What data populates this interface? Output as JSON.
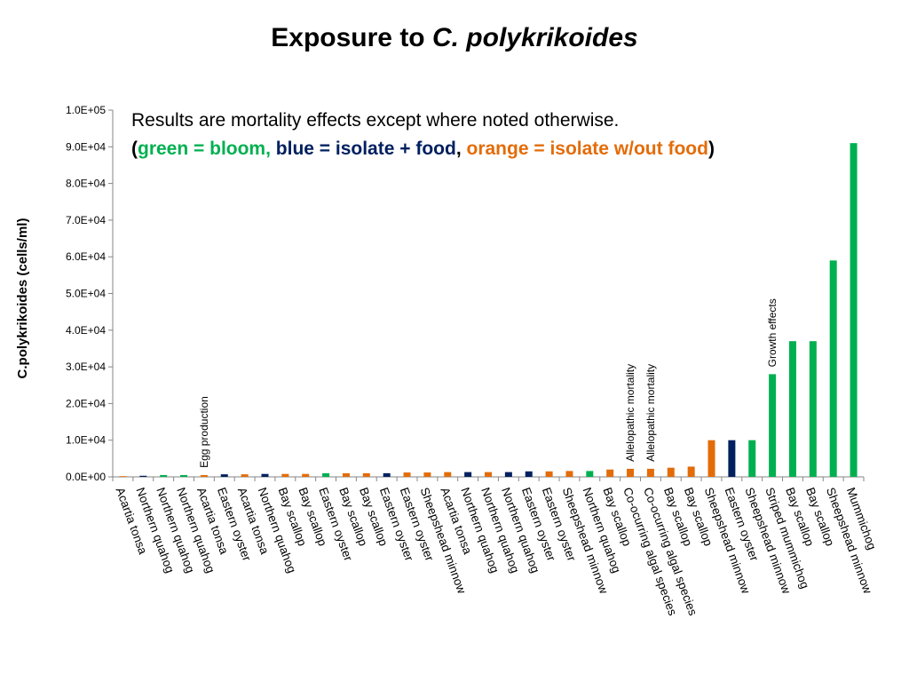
{
  "slide": {
    "title_plain": "Exposure to ",
    "title_italic": "C. polykrikoides"
  },
  "note": {
    "line1": "Results are mortality effects except where noted otherwise.",
    "open_paren": "(",
    "green_text": "green = bloom",
    "sep1": ", ",
    "blue_text": "blue = isolate + food",
    "sep2": ", ",
    "orange_text": "orange = isolate w/out food",
    "close_paren": ")"
  },
  "colors": {
    "bloom": "#00b050",
    "isolate_food": "#002060",
    "isolate_no_food": "#e36c09"
  },
  "chart_data": {
    "type": "bar",
    "ylabel": "C.polykrikoides (cells/ml)",
    "ylim": [
      0,
      100000
    ],
    "yticks": [
      "0.0E+00",
      "1.0E+04",
      "2.0E+04",
      "3.0E+04",
      "4.0E+04",
      "5.0E+04",
      "6.0E+04",
      "7.0E+04",
      "8.0E+04",
      "9.0E+04",
      "1.0E+05"
    ],
    "grid": false,
    "categories": [
      "Acartia tonsa",
      "Northern quahog",
      "Northern quahog",
      "Northern quahog",
      "Acartia tonsa",
      "Eastern oyster",
      "Acartia tonsa",
      "Northern quahog",
      "Bay scallop",
      "Bay scallop",
      "Eastern oyster",
      "Bay scallop",
      "Bay scallop",
      "Eastern oyster",
      "Eastern oyster",
      "Sheepshead minnow",
      "Acartia tonsa",
      "Northern quahog",
      "Northern quahog",
      "Northern quahog",
      "Eastern oyster",
      "Eastern oyster",
      "Sheepshead minnow",
      "Northern quahog",
      "Bay scallop",
      "Co-ocurring algal species",
      "Co-ocurring algal species",
      "Bay scallop",
      "Bay scallop",
      "Sheepshead minnow",
      "Eastern oyster",
      "Sheepshead minnow",
      "Striped mummichog",
      "Bay scallop",
      "Bay scallop",
      "Sheepshead minnow",
      "Mummichog"
    ],
    "values": [
      200,
      300,
      500,
      500,
      500,
      700,
      700,
      800,
      800,
      800,
      1000,
      1000,
      1000,
      1000,
      1200,
      1200,
      1300,
      1300,
      1300,
      1300,
      1500,
      1500,
      1600,
      1600,
      2000,
      2200,
      2200,
      2500,
      2800,
      10000,
      10000,
      10000,
      28000,
      37000,
      37000,
      59000,
      91000
    ],
    "groups": [
      "isolate_no_food",
      "isolate_food",
      "bloom",
      "bloom",
      "isolate_no_food",
      "isolate_food",
      "isolate_no_food",
      "isolate_food",
      "isolate_no_food",
      "isolate_no_food",
      "bloom",
      "isolate_no_food",
      "isolate_no_food",
      "isolate_food",
      "isolate_no_food",
      "isolate_no_food",
      "isolate_no_food",
      "isolate_food",
      "isolate_no_food",
      "isolate_food",
      "isolate_food",
      "isolate_no_food",
      "isolate_no_food",
      "bloom",
      "isolate_no_food",
      "isolate_no_food",
      "isolate_no_food",
      "isolate_no_food",
      "isolate_no_food",
      "isolate_no_food",
      "isolate_food",
      "bloom",
      "bloom",
      "bloom",
      "bloom",
      "bloom",
      "bloom"
    ],
    "annotations": [
      {
        "bar": 4,
        "text": "Egg production"
      },
      {
        "bar": 25,
        "text": "Allelopathic mortality"
      },
      {
        "bar": 26,
        "text": "Allelopathic mortality"
      },
      {
        "bar": 32,
        "text": "Growth effects"
      }
    ]
  }
}
